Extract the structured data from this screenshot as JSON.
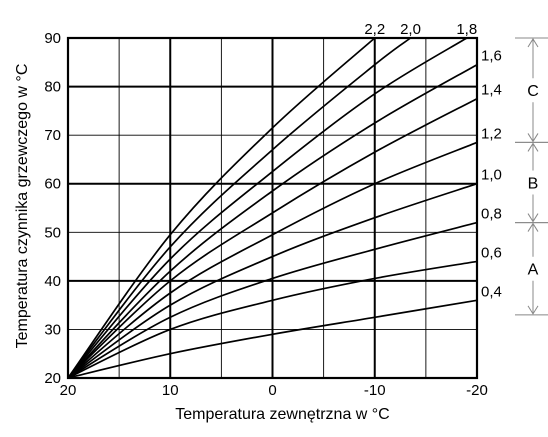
{
  "chart_data": {
    "type": "line",
    "xlabel": "Temperatura zewnętrzna w °C",
    "ylabel": "Temperatura czynnika grzewczego w °C",
    "xlim": [
      20,
      -20
    ],
    "ylim": [
      20,
      90
    ],
    "x_ticks": [
      "20",
      "10",
      "0",
      "-10",
      "-20"
    ],
    "y_ticks": [
      "20",
      "30",
      "40",
      "50",
      "60",
      "70",
      "80",
      "90"
    ],
    "grid": true,
    "series": [
      {
        "name": "2,2",
        "points": [
          [
            20,
            20
          ],
          [
            10,
            49.5
          ],
          [
            0,
            71.5
          ],
          [
            -10,
            90
          ]
        ]
      },
      {
        "name": "2,0",
        "points": [
          [
            20,
            20
          ],
          [
            10,
            47
          ],
          [
            0,
            67
          ],
          [
            -10,
            84.5
          ],
          [
            -13.5,
            90
          ]
        ]
      },
      {
        "name": "1,8",
        "points": [
          [
            20,
            20
          ],
          [
            10,
            44.5
          ],
          [
            0,
            62.5
          ],
          [
            -10,
            78.5
          ],
          [
            -19,
            90
          ]
        ]
      },
      {
        "name": "1,6",
        "points": [
          [
            20,
            20
          ],
          [
            10,
            42
          ],
          [
            0,
            58.5
          ],
          [
            -10,
            72.5
          ],
          [
            -20,
            84.5
          ]
        ]
      },
      {
        "name": "1,4",
        "points": [
          [
            20,
            20
          ],
          [
            10,
            40
          ],
          [
            0,
            54
          ],
          [
            -10,
            66.5
          ],
          [
            -20,
            77.5
          ]
        ]
      },
      {
        "name": "1,2",
        "points": [
          [
            20,
            20
          ],
          [
            10,
            37.5
          ],
          [
            0,
            49.5
          ],
          [
            -10,
            60
          ],
          [
            -20,
            68.5
          ]
        ]
      },
      {
        "name": "1,0",
        "points": [
          [
            20,
            20
          ],
          [
            10,
            35
          ],
          [
            0,
            45
          ],
          [
            -10,
            53
          ],
          [
            -20,
            60
          ]
        ]
      },
      {
        "name": "0,8",
        "points": [
          [
            20,
            20
          ],
          [
            10,
            32.5
          ],
          [
            0,
            40.5
          ],
          [
            -10,
            46.5
          ],
          [
            -20,
            52
          ]
        ]
      },
      {
        "name": "0,6",
        "points": [
          [
            20,
            20
          ],
          [
            10,
            30
          ],
          [
            0,
            36
          ],
          [
            -10,
            40.5
          ],
          [
            -20,
            44
          ]
        ]
      },
      {
        "name": "0,4",
        "points": [
          [
            20,
            20
          ],
          [
            10,
            25
          ],
          [
            0,
            29
          ],
          [
            -10,
            32.5
          ],
          [
            -20,
            36
          ]
        ]
      }
    ],
    "zones": [
      {
        "label": "C",
        "from": 1.2,
        "to": 2.2
      },
      {
        "label": "B",
        "from": 0.8,
        "to": 1.2
      },
      {
        "label": "A",
        "from": 0.3,
        "to": 0.8
      }
    ]
  }
}
